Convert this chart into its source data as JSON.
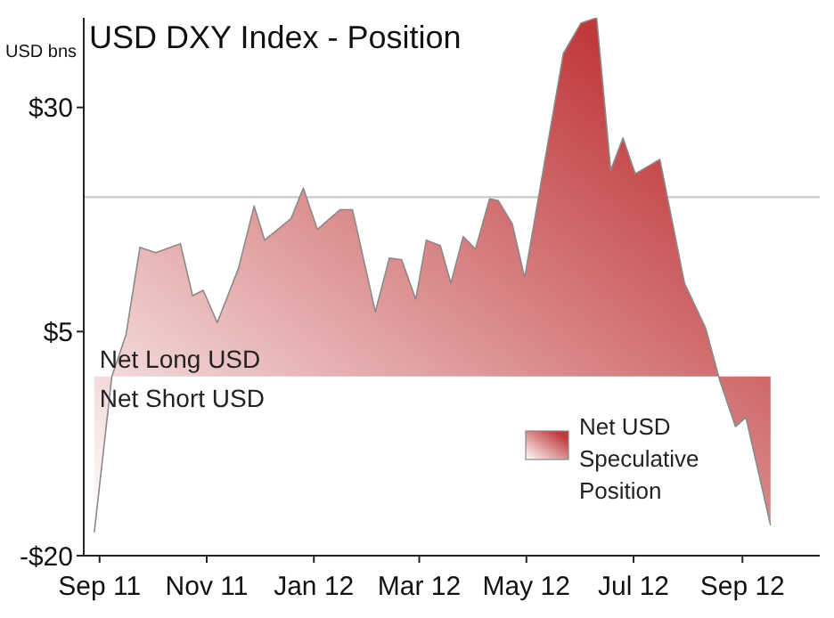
{
  "chart_data": {
    "type": "area",
    "title": "USD DXY Index - Position",
    "ylabel": "USD bns",
    "x": [
      "2011-08-29",
      "2011-09-08",
      "2011-09-16",
      "2011-09-24",
      "2011-10-03",
      "2011-10-17",
      "2011-10-24",
      "2011-10-30",
      "2011-11-07",
      "2011-11-19",
      "2011-11-28",
      "2011-12-04",
      "2011-12-19",
      "2011-12-26",
      "2012-01-03",
      "2012-01-16",
      "2012-01-23",
      "2012-02-05",
      "2012-02-13",
      "2012-02-20",
      "2012-02-28",
      "2012-03-05",
      "2012-03-13",
      "2012-03-19",
      "2012-03-26",
      "2012-04-02",
      "2012-04-10",
      "2012-04-15",
      "2012-04-23",
      "2012-04-30",
      "2012-05-22",
      "2012-06-01",
      "2012-06-10",
      "2012-06-18",
      "2012-06-25",
      "2012-07-02",
      "2012-07-16",
      "2012-07-30",
      "2012-08-11",
      "2012-08-19",
      "2012-08-28",
      "2012-09-03",
      "2012-09-17"
    ],
    "series": [
      {
        "name": "Net USD Speculative Position",
        "color": "#c0393b",
        "values": [
          -17.4,
          0,
          4.6,
          14.4,
          13.8,
          14.8,
          9,
          9.6,
          6,
          12,
          19,
          15.2,
          17.6,
          21,
          16.4,
          18.6,
          18.6,
          7.2,
          13.2,
          13,
          8.6,
          15.2,
          14.6,
          10.4,
          15.6,
          14.2,
          19.8,
          19.6,
          17,
          11,
          36,
          39.4,
          40,
          23,
          26.6,
          22.6,
          24.2,
          10.4,
          5.4,
          -0.4,
          -5.6,
          -4.6,
          -16.6
        ]
      }
    ],
    "xlim": [
      "2011-08-23",
      "2012-10-15"
    ],
    "xticks": [
      {
        "value": "2011-09-01",
        "label": "Sep 11"
      },
      {
        "value": "2011-11-01",
        "label": "Nov 11"
      },
      {
        "value": "2012-01-01",
        "label": "Jan 12"
      },
      {
        "value": "2012-03-01",
        "label": "Mar 12"
      },
      {
        "value": "2012-05-01",
        "label": "May 12"
      },
      {
        "value": "2012-07-01",
        "label": "Jul 12"
      },
      {
        "value": "2012-09-01",
        "label": "Sep 12"
      }
    ],
    "ylim": [
      -20,
      40
    ],
    "yticks": [
      {
        "value": -20,
        "label": "-$20"
      },
      {
        "value": 5,
        "label": "$5"
      },
      {
        "value": 30,
        "label": "$30"
      }
    ],
    "ref_lines": [
      {
        "axis": "y",
        "value": 20,
        "color": "#c8c8c8"
      }
    ],
    "annotations": [
      {
        "text": "Net Long USD",
        "x": "2011-09-01",
        "y": 0
      },
      {
        "text": "Net Short USD",
        "x": "2011-09-01",
        "y": 0
      }
    ],
    "legend": "bottom right",
    "grid": false
  }
}
